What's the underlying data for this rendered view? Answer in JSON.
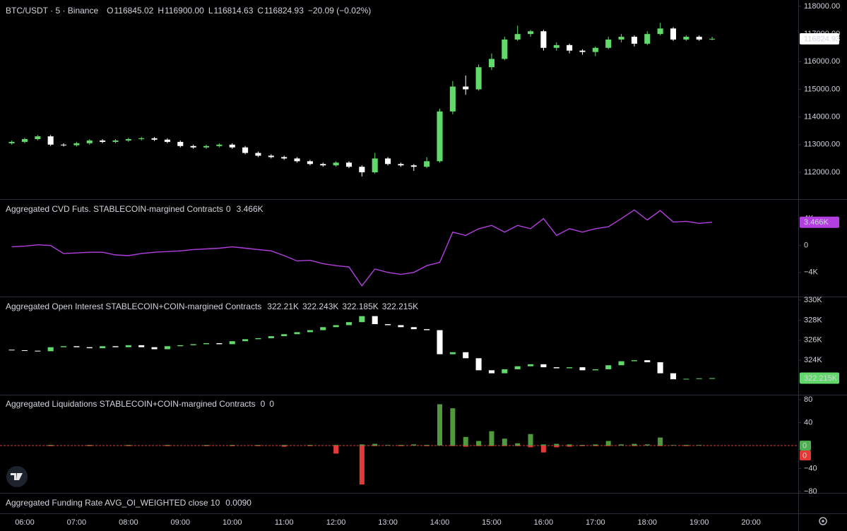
{
  "time_axis": {
    "xlim": [
      5.524,
      20.91
    ],
    "xticks": [
      {
        "value": 6,
        "label": "06:00"
      },
      {
        "value": 7,
        "label": "07:00"
      },
      {
        "value": 8,
        "label": "08:00"
      },
      {
        "value": 9,
        "label": "09:00"
      },
      {
        "value": 10,
        "label": "10:00"
      },
      {
        "value": 11,
        "label": "11:00"
      },
      {
        "value": 12,
        "label": "12:00"
      },
      {
        "value": 13,
        "label": "13:00"
      },
      {
        "value": 14,
        "label": "14:00"
      },
      {
        "value": 15,
        "label": "15:00"
      },
      {
        "value": 16,
        "label": "16:00"
      },
      {
        "value": 17,
        "label": "17:00"
      },
      {
        "value": 18,
        "label": "18:00"
      },
      {
        "value": 19,
        "label": "19:00"
      },
      {
        "value": 20,
        "label": "20:00"
      }
    ]
  },
  "chart_data": [
    {
      "type": "candlestick",
      "title": "BTC/USDT · 5 · Binance",
      "legend": [
        {
          "key": "O",
          "value": "116845.02"
        },
        {
          "key": "H",
          "value": "116900.00"
        },
        {
          "key": "L",
          "value": "116814.63"
        },
        {
          "key": "C",
          "value": "116824.93"
        }
      ],
      "change": "−20.09 (−0.02%)",
      "x": [
        5.75,
        6,
        6.25,
        6.5,
        6.75,
        7,
        7.25,
        7.5,
        7.75,
        8,
        8.25,
        8.5,
        8.75,
        9,
        9.25,
        9.5,
        9.75,
        10,
        10.25,
        10.5,
        10.75,
        11,
        11.25,
        11.5,
        11.75,
        12,
        12.25,
        12.5,
        12.75,
        13,
        13.25,
        13.5,
        13.75,
        14,
        14.25,
        14.5,
        14.75,
        15,
        15.25,
        15.5,
        15.75,
        16,
        16.25,
        16.5,
        16.75,
        17,
        17.25,
        17.5,
        17.75,
        18,
        18.25,
        18.5,
        18.75,
        19,
        19.25
      ],
      "open": [
        113050,
        113100,
        113200,
        113300,
        113000,
        112980,
        113050,
        113150,
        113100,
        113150,
        113200,
        113230,
        113180,
        113100,
        112950,
        112900,
        112950,
        113000,
        112900,
        112700,
        112600,
        112550,
        112500,
        112400,
        112300,
        112250,
        112350,
        112200,
        112000,
        112500,
        112300,
        112250,
        112200,
        112400,
        114200,
        115100,
        115000,
        115800,
        116100,
        116800,
        117000,
        117100,
        116500,
        116600,
        116400,
        116350,
        116500,
        116800,
        116900,
        116650,
        117000,
        117200,
        116800,
        116900,
        116800
      ],
      "high": [
        113150,
        113250,
        113350,
        113350,
        113050,
        113100,
        113200,
        113200,
        113200,
        113250,
        113280,
        113280,
        113230,
        113150,
        113000,
        113000,
        113050,
        113050,
        112950,
        112750,
        112650,
        112600,
        112550,
        112450,
        112350,
        112400,
        112400,
        112250,
        112700,
        112550,
        112350,
        112300,
        112550,
        114300,
        115300,
        115500,
        115900,
        116300,
        116900,
        117300,
        117150,
        117150,
        116700,
        116650,
        116450,
        116550,
        116900,
        117000,
        116950,
        117100,
        117400,
        117250,
        116950,
        116950,
        116900
      ],
      "low": [
        113000,
        113050,
        113150,
        112950,
        112930,
        112930,
        113000,
        113050,
        113050,
        113100,
        113150,
        113130,
        113050,
        112900,
        112850,
        112850,
        112900,
        112850,
        112650,
        112550,
        112500,
        112450,
        112350,
        112250,
        112200,
        112200,
        112150,
        111850,
        111950,
        112250,
        112200,
        112050,
        112150,
        112350,
        114100,
        114800,
        114950,
        115700,
        116050,
        116750,
        116900,
        116400,
        116400,
        116300,
        116250,
        116200,
        116450,
        116700,
        116550,
        116600,
        116950,
        116750,
        116750,
        116750,
        116780
      ],
      "close": [
        113100,
        113200,
        113300,
        113000,
        112980,
        113050,
        113150,
        113100,
        113150,
        113200,
        113230,
        113180,
        113100,
        112950,
        112900,
        112950,
        113000,
        112900,
        112700,
        112600,
        112550,
        112500,
        112400,
        112300,
        112250,
        112350,
        112200,
        112000,
        112500,
        112300,
        112250,
        112200,
        112400,
        114200,
        115100,
        115000,
        115800,
        116100,
        116800,
        117000,
        117100,
        116500,
        116600,
        116400,
        116350,
        116500,
        116800,
        116900,
        116650,
        117000,
        117200,
        116800,
        116900,
        116800,
        116824.93
      ],
      "last_label": "116824.93",
      "up_color": "#62d96b",
      "down_color": "#ffffff",
      "ylim": [
        111030,
        118230
      ],
      "yticks": [
        {
          "value": 112000,
          "label": "112000.00"
        },
        {
          "value": 113000,
          "label": "113000.00"
        },
        {
          "value": 114000,
          "label": "114000.00"
        },
        {
          "value": 115000,
          "label": "115000.00"
        },
        {
          "value": 116000,
          "label": "116000.00"
        },
        {
          "value": 117000,
          "label": "117000.00"
        },
        {
          "value": 118000,
          "label": "118000.00"
        }
      ]
    },
    {
      "type": "line",
      "title": "Aggregated CVD Futs. STABLECOIN-margined Contracts",
      "parameter": "0",
      "last_label": "3.466K",
      "color": "#b43fe0",
      "x": [
        5.75,
        6,
        6.25,
        6.5,
        6.75,
        7,
        7.25,
        7.5,
        7.75,
        8,
        8.25,
        8.5,
        8.75,
        9,
        9.25,
        9.5,
        9.75,
        10,
        10.25,
        10.5,
        10.75,
        11,
        11.25,
        11.5,
        11.75,
        12,
        12.25,
        12.5,
        12.75,
        13,
        13.25,
        13.5,
        13.75,
        14,
        14.25,
        14.5,
        14.75,
        15,
        15.25,
        15.5,
        15.75,
        16,
        16.25,
        16.5,
        16.75,
        17,
        17.25,
        17.5,
        17.75,
        18,
        18.25,
        18.5,
        18.75,
        19,
        19.25
      ],
      "values": [
        -0.2,
        -0.1,
        0.1,
        0.0,
        -1.2,
        -1.1,
        -1.0,
        -1.0,
        -1.4,
        -1.5,
        -1.2,
        -1.0,
        -0.9,
        -0.8,
        -0.6,
        -0.5,
        -0.4,
        -0.2,
        -0.4,
        -0.6,
        -0.8,
        -1.5,
        -2.3,
        -2.2,
        -2.7,
        -3.0,
        -3.2,
        -6.0,
        -3.5,
        -4.0,
        -4.3,
        -4.0,
        -3.0,
        -2.5,
        2.0,
        1.5,
        2.5,
        3.0,
        2.0,
        3.0,
        2.5,
        4.0,
        1.5,
        2.5,
        2.0,
        2.5,
        2.8,
        4.0,
        5.3,
        3.8,
        5.2,
        3.5,
        3.6,
        3.3,
        3.466
      ],
      "ylim": [
        -7.6,
        6.8
      ],
      "yticks": [
        {
          "value": -4,
          "label": "−4K"
        },
        0,
        {
          "value": 4,
          "label": "4K"
        }
      ]
    },
    {
      "type": "candlestick",
      "title": "Aggregated Open Interest STABLECOIN+COIN-margined Contracts",
      "legend": [
        "322.21K",
        "322.243K",
        "322.185K",
        "322.215K"
      ],
      "x": [
        5.75,
        6,
        6.25,
        6.5,
        6.75,
        7,
        7.25,
        7.5,
        7.75,
        8,
        8.25,
        8.5,
        8.75,
        9,
        9.25,
        9.5,
        9.75,
        10,
        10.25,
        10.5,
        10.75,
        11,
        11.25,
        11.5,
        11.75,
        12,
        12.25,
        12.5,
        12.75,
        13,
        13.25,
        13.5,
        13.75,
        14,
        14.25,
        14.5,
        14.75,
        15,
        15.25,
        15.5,
        15.75,
        16,
        16.25,
        16.5,
        16.75,
        17,
        17.25,
        17.5,
        17.75,
        18,
        18.25,
        18.5,
        18.75,
        19,
        19.25
      ],
      "open": [
        325.05,
        325.0,
        324.95,
        324.9,
        325.3,
        325.4,
        325.3,
        325.2,
        325.4,
        325.3,
        325.5,
        325.3,
        325.1,
        325.4,
        325.5,
        325.6,
        325.7,
        325.6,
        325.9,
        326.1,
        326.2,
        326.4,
        326.6,
        326.8,
        327.0,
        327.3,
        327.5,
        327.8,
        328.4,
        327.6,
        327.5,
        327.3,
        327.1,
        327.0,
        324.6,
        324.8,
        324.2,
        323.0,
        322.7,
        323.1,
        323.4,
        323.6,
        323.3,
        323.2,
        323.3,
        323.0,
        323.1,
        323.5,
        323.9,
        324.0,
        323.8,
        322.7,
        322.1,
        322.15,
        322.2
      ],
      "close": [
        325.0,
        324.95,
        324.9,
        325.3,
        325.4,
        325.3,
        325.2,
        325.4,
        325.3,
        325.5,
        325.3,
        325.1,
        325.4,
        325.5,
        325.6,
        325.7,
        325.6,
        325.9,
        326.1,
        326.2,
        326.4,
        326.6,
        326.8,
        327.0,
        327.3,
        327.5,
        327.8,
        328.4,
        327.6,
        327.5,
        327.3,
        327.1,
        327.0,
        324.6,
        324.8,
        324.2,
        323.0,
        322.7,
        323.1,
        323.4,
        323.6,
        323.3,
        323.2,
        323.3,
        323.0,
        323.1,
        323.5,
        323.9,
        324.0,
        323.8,
        322.7,
        322.1,
        322.15,
        322.2,
        322.215
      ],
      "last_label": "322.215K",
      "up_color": "#62d96b",
      "down_color": "#ffffff",
      "legend_color": "#8fe88a",
      "ylim": [
        320.56,
        330.28
      ],
      "yticks": [
        {
          "value": 324,
          "label": "324K"
        },
        {
          "value": 326,
          "label": "326K"
        },
        {
          "value": 328,
          "label": "328K"
        },
        {
          "value": 330,
          "label": "330K"
        }
      ]
    },
    {
      "type": "bar",
      "title": "Aggregated Liquidations STABLECOIN+COIN-margined Contracts",
      "x": [
        5.75,
        6,
        6.25,
        6.5,
        6.75,
        7,
        7.25,
        7.5,
        7.75,
        8,
        8.25,
        8.5,
        8.75,
        9,
        9.25,
        9.5,
        9.75,
        10,
        10.25,
        10.5,
        10.75,
        11,
        11.25,
        11.5,
        11.75,
        12,
        12.25,
        12.5,
        12.75,
        13,
        13.25,
        13.5,
        13.75,
        14,
        14.25,
        14.5,
        14.75,
        15,
        15.25,
        15.5,
        15.75,
        16,
        16.25,
        16.5,
        16.75,
        17,
        17.25,
        17.5,
        17.75,
        18,
        18.25,
        18.5,
        18.75,
        19,
        19.25
      ],
      "series": [
        {
          "color": "#4f9a3c",
          "value_label": "0",
          "values": [
            0,
            0,
            0,
            1,
            0,
            0,
            1,
            0,
            0,
            1,
            0,
            0,
            1,
            0,
            0,
            1,
            0,
            1,
            0,
            1,
            0,
            1,
            0,
            1,
            0,
            1,
            0,
            2,
            3,
            1,
            1,
            2,
            1,
            72,
            65,
            15,
            8,
            25,
            12,
            4,
            20,
            2,
            3,
            2,
            1,
            2,
            8,
            2,
            3,
            2,
            14,
            1,
            1,
            1,
            0
          ]
        },
        {
          "color": "#e03a3a",
          "value_label": "0",
          "values": [
            0,
            0,
            0,
            -1,
            0,
            0,
            -1,
            0,
            0,
            -1,
            0,
            0,
            -1,
            0,
            0,
            -1,
            0,
            -1,
            0,
            -1,
            0,
            -2,
            0,
            -1,
            0,
            -14,
            0,
            -68,
            -1,
            0,
            -1,
            0,
            -1,
            0,
            -1,
            -2,
            -1,
            -1,
            -1,
            -1,
            -3,
            -12,
            -3,
            -2,
            -1,
            -1,
            -1,
            0,
            -1,
            0,
            -1,
            0,
            -1,
            0,
            0
          ]
        }
      ],
      "ylim": [
        -82.5,
        87.4
      ],
      "yticks": [
        {
          "value": -80,
          "label": "−80"
        },
        {
          "value": -40,
          "label": "−40"
        },
        40,
        80
      ]
    }
  ],
  "funding": {
    "title": "Aggregated Funding Rate AVG_OI_WEIGHTED close 10",
    "value": "0.0090"
  }
}
